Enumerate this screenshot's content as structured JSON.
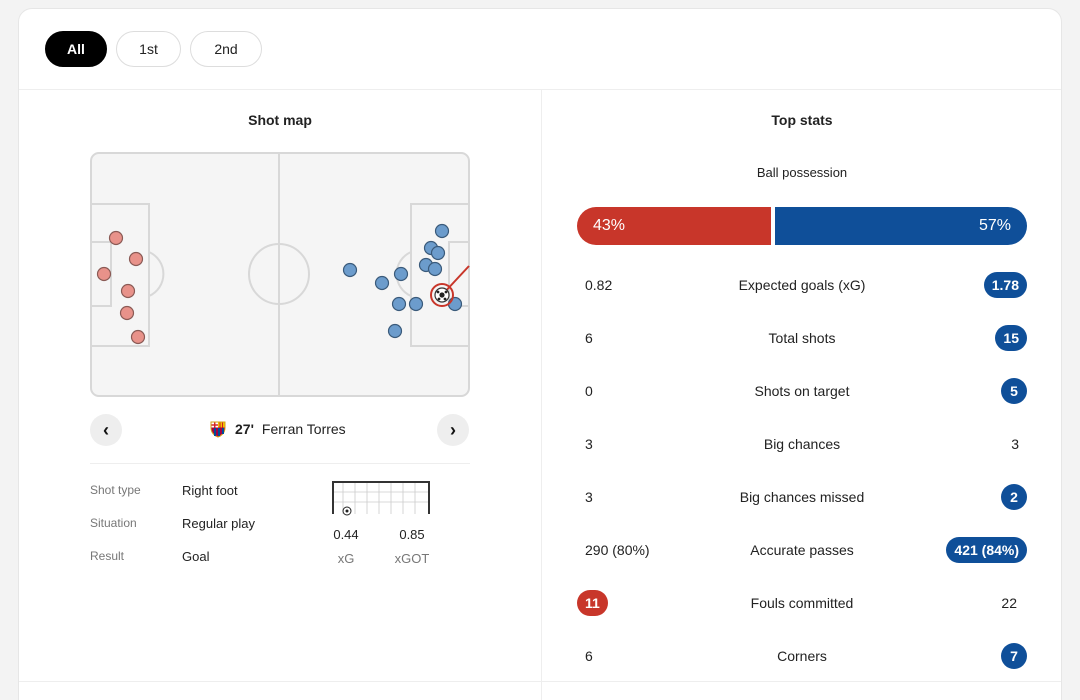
{
  "tabs": [
    {
      "label": "All",
      "active": true
    },
    {
      "label": "1st",
      "active": false
    },
    {
      "label": "2nd",
      "active": false
    }
  ],
  "shot_map": {
    "title": "Shot map",
    "selected_shot": {
      "minute": "27'",
      "player": "Ferran Torres",
      "team_crest": "barcelona-crest"
    },
    "details": [
      {
        "label": "Shot type",
        "value": "Right foot"
      },
      {
        "label": "Situation",
        "value": "Regular play"
      },
      {
        "label": "Result",
        "value": "Goal"
      }
    ],
    "xg": {
      "value": "0.44",
      "label": "xG"
    },
    "xgot": {
      "value": "0.85",
      "label": "xGOT"
    },
    "colors": {
      "home": "#e8928a",
      "away": "#6c9ccc",
      "goal": "#c8362a"
    }
  },
  "top_stats": {
    "title": "Top stats",
    "possession": {
      "label": "Ball possession",
      "home": "43%",
      "away": "57%",
      "home_value": 43,
      "away_value": 57
    },
    "rows": [
      {
        "name": "Expected goals (xG)",
        "home": "0.82",
        "away": "1.78",
        "highlight": "away"
      },
      {
        "name": "Total shots",
        "home": "6",
        "away": "15",
        "highlight": "away"
      },
      {
        "name": "Shots on target",
        "home": "0",
        "away": "5",
        "highlight": "away"
      },
      {
        "name": "Big chances",
        "home": "3",
        "away": "3",
        "highlight": "none"
      },
      {
        "name": "Big chances missed",
        "home": "3",
        "away": "2",
        "highlight": "away"
      },
      {
        "name": "Accurate passes",
        "home": "290 (80%)",
        "away": "421 (84%)",
        "highlight": "away"
      },
      {
        "name": "Fouls committed",
        "home": "11",
        "away": "22",
        "highlight": "home"
      },
      {
        "name": "Corners",
        "home": "6",
        "away": "7",
        "highlight": "away"
      }
    ],
    "colors": {
      "home": "#c8362a",
      "away": "#0f4f99"
    }
  }
}
